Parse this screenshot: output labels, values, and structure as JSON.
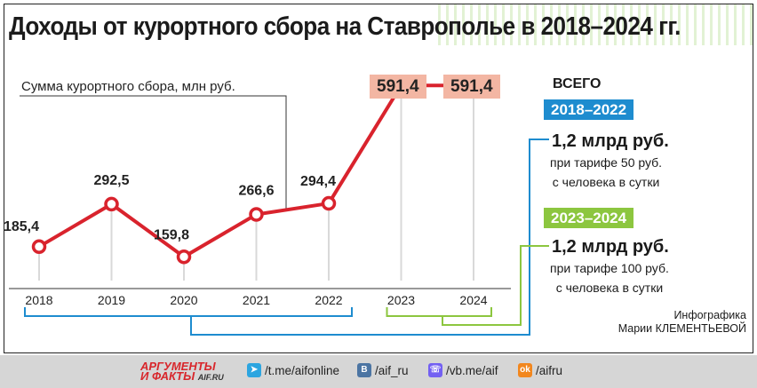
{
  "title": "Доходы от курортного сбора на Ставрополье в 2018–2024 гг.",
  "chart_data": {
    "type": "line",
    "ylabel": "Сумма курортного сбора, млн руб.",
    "categories": [
      "2018",
      "2019",
      "2020",
      "2021",
      "2022",
      "2023",
      "2024"
    ],
    "series": [
      {
        "values": [
          185.4,
          292.5,
          159.8,
          266.6,
          294.4,
          591.4,
          591.4
        ]
      }
    ],
    "value_labels": [
      "185,4",
      "292,5",
      "159,8",
      "266,6",
      "294,4",
      "591,4",
      "591,4"
    ],
    "highlighted_labels": [
      "591,4",
      "591,4"
    ],
    "ylim": [
      100,
      650
    ],
    "grid": false,
    "line_color": "#d9232d",
    "highlight_color": "#f3b6a3"
  },
  "summary": {
    "heading": "ВСЕГО",
    "periods": [
      {
        "label": "2018–2022",
        "color": "#1e8ccf",
        "amount": "1,2 млрд руб.",
        "note_line1": "при тарифе 50 руб.",
        "note_line2": "с человека в сутки"
      },
      {
        "label": "2023–2024",
        "color": "#8cc63f",
        "amount": "1,2 млрд руб.",
        "note_line1": "при тарифе 100 руб.",
        "note_line2": "с человека в сутки"
      }
    ]
  },
  "credit": {
    "line1": "Инфографика",
    "line2": "Марии КЛЕМЕНТЬЕВОЙ"
  },
  "footer": {
    "brand_line1": "АРГУМЕНТЫ",
    "brand_line2": "И ФАКТЫ",
    "brand_site": "AIF.RU",
    "links": [
      {
        "icon": "telegram-icon",
        "text": "/t.me/aifonline",
        "color": "#2ca5e0"
      },
      {
        "icon": "vk-icon",
        "text": "/aif_ru",
        "color": "#4c75a3"
      },
      {
        "icon": "viber-icon",
        "text": "/vb.me/aif",
        "color": "#7360f2"
      },
      {
        "icon": "odnoklassniki-icon",
        "text": "/aifru",
        "color": "#f2871e"
      }
    ]
  }
}
